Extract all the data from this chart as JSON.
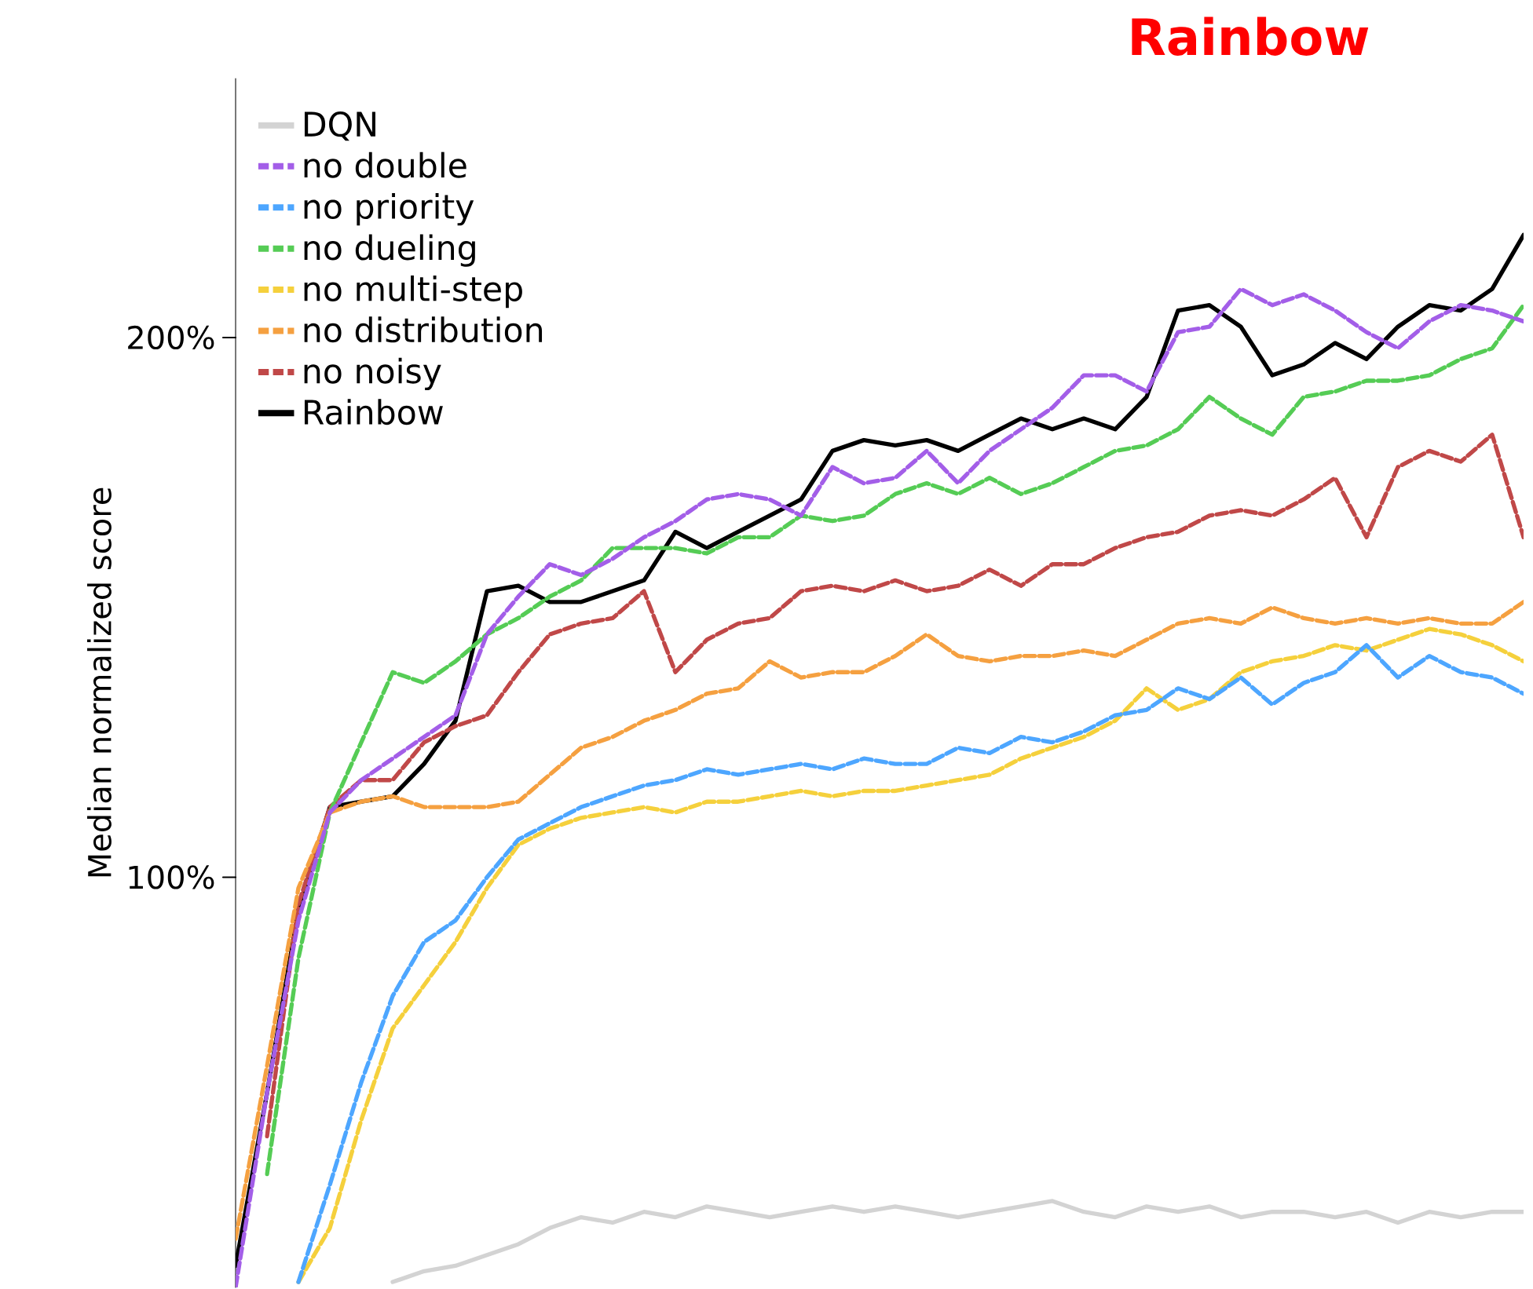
{
  "chart_data": {
    "type": "line",
    "title": "Rainbow",
    "ylabel": "Median normalized score",
    "categories": [
      null,
      null,
      null,
      null,
      null,
      null,
      null,
      null,
      null,
      null,
      null,
      null,
      null,
      null,
      null,
      null,
      null,
      null,
      null,
      null,
      null,
      null,
      null,
      null,
      null,
      null,
      null,
      null,
      null,
      null,
      null,
      null,
      null,
      null,
      null,
      null,
      null,
      null,
      null,
      null,
      null,
      null
    ],
    "ylim": [
      24,
      248
    ],
    "yticks": [
      {
        "value": 100,
        "label": "100%"
      },
      {
        "value": 200,
        "label": "200%"
      }
    ],
    "tick_labels": "y",
    "grid": false,
    "legend": "top left",
    "marker": "none",
    "series": [
      {
        "name": "DQN",
        "color": "#d3d3d3",
        "line_style": "solid",
        "values": [
          null,
          null,
          null,
          null,
          null,
          25,
          27,
          28,
          30,
          32,
          35,
          37,
          36,
          38,
          37,
          39,
          38,
          37,
          38,
          39,
          38,
          39,
          38,
          37,
          38,
          39,
          40,
          38,
          37,
          39,
          38,
          39,
          37,
          38,
          38,
          37,
          38,
          36,
          38,
          37,
          38,
          38
        ]
      },
      {
        "name": "no double",
        "color": "#a35ee8",
        "line_style": "dashed",
        "values": [
          24,
          60,
          92,
          112,
          118,
          122,
          126,
          130,
          145,
          152,
          158,
          156,
          159,
          163,
          166,
          170,
          171,
          170,
          167,
          176,
          173,
          174,
          179,
          173,
          179,
          183,
          187,
          193,
          193,
          190,
          201,
          202,
          209,
          206,
          208,
          205,
          201,
          198,
          203,
          206,
          205,
          203
        ]
      },
      {
        "name": "no priority",
        "color": "#4da6ff",
        "line_style": "dashed",
        "values": [
          null,
          null,
          25,
          43,
          62,
          78,
          88,
          92,
          100,
          107,
          110,
          113,
          115,
          117,
          118,
          120,
          119,
          120,
          121,
          120,
          122,
          121,
          121,
          124,
          123,
          126,
          125,
          127,
          130,
          131,
          135,
          133,
          137,
          132,
          136,
          138,
          143,
          137,
          141,
          138,
          137,
          134
        ]
      },
      {
        "name": "no dueling",
        "color": "#55cc55",
        "line_style": "dashed",
        "values": [
          null,
          45,
          85,
          112,
          125,
          138,
          136,
          140,
          145,
          148,
          152,
          155,
          161,
          161,
          161,
          160,
          163,
          163,
          167,
          166,
          167,
          171,
          173,
          171,
          174,
          171,
          173,
          176,
          179,
          180,
          183,
          189,
          185,
          182,
          189,
          190,
          192,
          192,
          193,
          196,
          198,
          206
        ]
      },
      {
        "name": "no multi-step",
        "color": "#f5d03c",
        "line_style": "dashed",
        "values": [
          null,
          null,
          25,
          35,
          55,
          72,
          80,
          88,
          98,
          106,
          109,
          111,
          112,
          113,
          112,
          114,
          114,
          115,
          116,
          115,
          116,
          116,
          117,
          118,
          119,
          122,
          124,
          126,
          129,
          135,
          131,
          133,
          138,
          140,
          141,
          143,
          142,
          144,
          146,
          145,
          143,
          140
        ]
      },
      {
        "name": "no distribution",
        "color": "#f5a040",
        "line_style": "dashed",
        "values": [
          33,
          65,
          98,
          112,
          114,
          115,
          113,
          113,
          113,
          114,
          119,
          124,
          126,
          129,
          131,
          134,
          135,
          140,
          137,
          138,
          138,
          141,
          145,
          141,
          140,
          141,
          141,
          142,
          141,
          144,
          147,
          148,
          147,
          150,
          148,
          147,
          148,
          147,
          148,
          147,
          147,
          151
        ]
      },
      {
        "name": "no noisy",
        "color": "#c04848",
        "line_style": "dashed",
        "values": [
          null,
          52,
          95,
          113,
          118,
          118,
          125,
          128,
          130,
          138,
          145,
          147,
          148,
          153,
          138,
          144,
          147,
          148,
          153,
          154,
          153,
          155,
          153,
          154,
          157,
          154,
          158,
          158,
          161,
          163,
          164,
          167,
          168,
          167,
          170,
          174,
          163,
          176,
          179,
          177,
          182,
          163
        ]
      },
      {
        "name": "Rainbow",
        "color": "#000000",
        "line_style": "solid",
        "values": [
          28,
          60,
          94,
          113,
          114,
          115,
          121,
          129,
          153,
          154,
          151,
          151,
          153,
          155,
          164,
          161,
          164,
          167,
          170,
          179,
          181,
          180,
          181,
          179,
          182,
          185,
          183,
          185,
          183,
          189,
          205,
          206,
          202,
          193,
          195,
          199,
          196,
          202,
          206,
          205,
          209,
          219
        ]
      }
    ]
  }
}
